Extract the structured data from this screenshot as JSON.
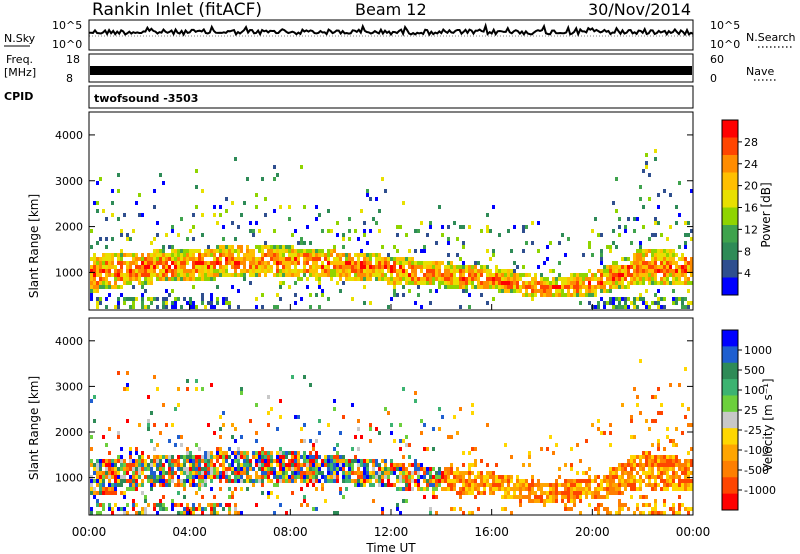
{
  "header": {
    "station": "Rankin Inlet (fitACF)",
    "beam": "Beam 12",
    "date": "30/Nov/2014"
  },
  "small_panels": {
    "nsky_label": "N.Sky",
    "nsky_ticks": [
      "10^5",
      "10^0"
    ],
    "nsearch_label": "N.Search",
    "nsearch_ticks": [
      "10^5",
      "10^0"
    ],
    "freq_label_1": "Freq.",
    "freq_label_2": "[MHz]",
    "freq_ticks": [
      "18",
      "8"
    ],
    "nave_label": "Nave",
    "nave_ticks": [
      "60",
      "0"
    ],
    "cpid_label": "CPID",
    "cpid_value": "twofsound  -3503"
  },
  "chart_data": [
    {
      "type": "heatmap",
      "name": "power",
      "ylabel": "Slant Range [km]",
      "xlabel": "Time UT",
      "xlim": [
        0,
        24
      ],
      "ylim": [
        180,
        4500
      ],
      "y_ticks": [
        "1000",
        "2000",
        "3000",
        "4000"
      ],
      "colorbar": {
        "label": "Power [dB]",
        "ticks": [
          "28",
          "24",
          "20",
          "16",
          "12",
          "8",
          "4"
        ],
        "colors": [
          "#ff0000",
          "#ff4500",
          "#ff8c00",
          "#ffbf00",
          "#e8e000",
          "#8fd400",
          "#3fa34d",
          "#2e8b57",
          "#2f4f8f",
          "#0000ff"
        ]
      },
      "density_profile": {
        "hours": [
          0,
          2,
          4,
          6,
          8,
          10,
          12,
          14,
          16,
          18,
          20,
          22,
          24
        ],
        "main_band_center_km": [
          1000,
          1150,
          1200,
          1300,
          1250,
          1200,
          1100,
          1000,
          900,
          700,
          800,
          1200,
          1100
        ],
        "main_band_width_km": [
          800,
          700,
          700,
          700,
          700,
          600,
          600,
          550,
          500,
          450,
          500,
          800,
          700
        ]
      }
    },
    {
      "type": "heatmap",
      "name": "velocity",
      "ylabel": "Slant Range [km]",
      "xlabel": "Time UT",
      "xlim": [
        0,
        24
      ],
      "ylim": [
        180,
        4500
      ],
      "y_ticks": [
        "1000",
        "2000",
        "3000",
        "4000"
      ],
      "colorbar": {
        "label": "Velocity [m s⁻¹]",
        "ticks": [
          "1000",
          "500",
          "100",
          "25",
          "-25",
          "-100",
          "-500",
          "-1000"
        ],
        "colors": [
          "#0000ff",
          "#1f5fd0",
          "#2e8b57",
          "#3cb371",
          "#6ccf3c",
          "#c8c8c8",
          "#ffd700",
          "#ffa500",
          "#ff7f00",
          "#ff4500",
          "#ff0000"
        ]
      }
    }
  ],
  "x_ticks": [
    "00:00",
    "04:00",
    "08:00",
    "12:00",
    "16:00",
    "20:00",
    "00:00"
  ],
  "x_title": "Time UT"
}
